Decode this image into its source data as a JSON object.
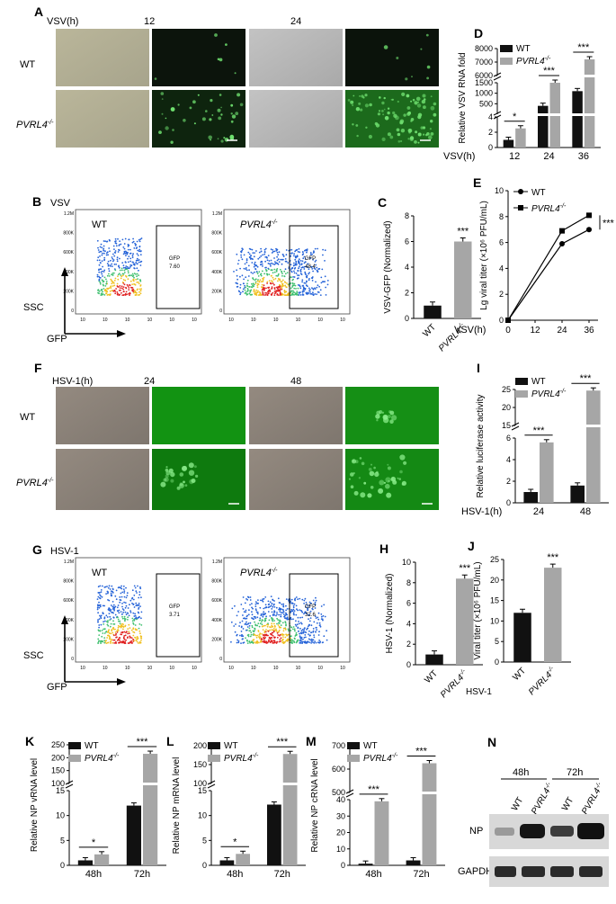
{
  "panels": {
    "A": {
      "letter": "A",
      "axis": "VSV(h)",
      "t1": "12",
      "t2": "24",
      "row1": "WT",
      "row2": "PVRL4"
    },
    "B": {
      "letter": "B",
      "virus": "VSV",
      "wt": "WT",
      "ko": "PVRL4",
      "gate_label": "GFP",
      "gate_wt": "7.60",
      "gate_ko": "48.4",
      "ssc": "SSC",
      "gfp": "GFP"
    },
    "C": {
      "letter": "C"
    },
    "D": {
      "letter": "D"
    },
    "E": {
      "letter": "E"
    },
    "F": {
      "letter": "F",
      "axis": "HSV-1(h)",
      "t1": "24",
      "t2": "48",
      "row1": "WT",
      "row2": "PVRL4"
    },
    "G": {
      "letter": "G",
      "virus": "HSV-1",
      "wt": "WT",
      "ko": "PVRL4",
      "gate_label": "GFP",
      "gate_wt": "3.71",
      "gate_ko": "32.6",
      "ssc": "SSC",
      "gfp": "GFP"
    },
    "H": {
      "letter": "H"
    },
    "I": {
      "letter": "I"
    },
    "J": {
      "letter": "J"
    },
    "K": {
      "letter": "K"
    },
    "L": {
      "letter": "L"
    },
    "M": {
      "letter": "M"
    },
    "N": {
      "letter": "N",
      "t1": "48h",
      "t2": "72h",
      "wt": "WT",
      "ko": "PVRL4",
      "np": "NP",
      "gapdh": "GAPDH"
    }
  },
  "flow_ticks": {
    "y": [
      "1.2M",
      "800K",
      "600K",
      "400K",
      "200K",
      "0"
    ],
    "x": [
      "10",
      "10",
      "10",
      "10",
      "10",
      "10"
    ]
  },
  "chart_data": [
    {
      "id": "D",
      "type": "bar",
      "ylabel": "Relative VSV RNA fold",
      "xaxis_label": "VSV(h)",
      "categories": [
        "12",
        "24",
        "36"
      ],
      "legend": [
        "WT",
        "PVRL4-/-"
      ],
      "series": [
        {
          "name": "WT",
          "values": [
            1,
            400,
            1100
          ]
        },
        {
          "name": "PVRL4-/-",
          "values": [
            2.5,
            1500,
            7200
          ]
        }
      ],
      "yticks": [
        "8000",
        "7000",
        "6000",
        "1500",
        "1000",
        "500",
        "4",
        "2",
        "0"
      ],
      "sig": [
        "*",
        "***",
        "***"
      ]
    },
    {
      "id": "C",
      "type": "bar",
      "ylabel": "VSV-GFP (Normalized)",
      "categories": [
        "WT",
        "PVRL4-/-"
      ],
      "values": [
        1,
        6
      ],
      "ylim": [
        0,
        8
      ],
      "yticks": [
        "0",
        "2",
        "4",
        "6",
        "8"
      ],
      "sig": "***"
    },
    {
      "id": "E",
      "type": "line",
      "ylabel": "Lg viral titer (×10⁶ PFU/mL)",
      "xaxis_label": "VSV(h)",
      "x": [
        0,
        24,
        36
      ],
      "xticks": [
        "0",
        "12",
        "24",
        "36"
      ],
      "legend": [
        "WT",
        "PVRL4-/-"
      ],
      "series": [
        {
          "name": "WT",
          "values": [
            0,
            5.9,
            7
          ]
        },
        {
          "name": "PVRL4-/-",
          "values": [
            0,
            6.9,
            8.1
          ]
        }
      ],
      "ylim": [
        0,
        10
      ],
      "yticks": [
        "0",
        "2",
        "4",
        "6",
        "8",
        "10"
      ],
      "sig": "***"
    },
    {
      "id": "I",
      "type": "bar",
      "ylabel": "Relative luciferase activity",
      "xaxis_label": "HSV-1(h)",
      "categories": [
        "24",
        "48"
      ],
      "legend": [
        "WT",
        "PVRL4-/-"
      ],
      "series": [
        {
          "name": "WT",
          "values": [
            1,
            1.6
          ]
        },
        {
          "name": "PVRL4-/-",
          "values": [
            5.6,
            24.7
          ]
        }
      ],
      "yticks": [
        "25",
        "20",
        "15",
        "6",
        "4",
        "2",
        "0"
      ],
      "sig": [
        "***",
        "***"
      ]
    },
    {
      "id": "H",
      "type": "bar",
      "ylabel": "HSV-1 (Normalized)",
      "categories": [
        "WT",
        "PVRL4-/-"
      ],
      "values": [
        1,
        8.4
      ],
      "ylim": [
        0,
        10
      ],
      "yticks": [
        "0",
        "2",
        "4",
        "6",
        "8",
        "10"
      ],
      "sig": "***"
    },
    {
      "id": "J",
      "type": "bar",
      "ylabel": "Viral titer (×10⁶ PFU/mL)",
      "xaxis_label": "HSV-1",
      "categories": [
        "WT",
        "PVRL4-/-"
      ],
      "values": [
        12,
        23
      ],
      "ylim": [
        0,
        25
      ],
      "yticks": [
        "0",
        "5",
        "10",
        "15",
        "20",
        "25"
      ],
      "sig": "***"
    },
    {
      "id": "K",
      "type": "bar",
      "ylabel": "Relative NP vRNA level",
      "categories": [
        "48h",
        "72h"
      ],
      "legend": [
        "WT",
        "PVRL4-/-"
      ],
      "series": [
        {
          "name": "WT",
          "values": [
            1,
            12
          ]
        },
        {
          "name": "PVRL4-/-",
          "values": [
            2.2,
            215
          ]
        }
      ],
      "yticks": [
        "250",
        "200",
        "150",
        "100",
        "15",
        "10",
        "5",
        "0"
      ],
      "sig": [
        "*",
        "***"
      ]
    },
    {
      "id": "L",
      "type": "bar",
      "ylabel": "Relative NP mRNA level",
      "categories": [
        "48h",
        "72h"
      ],
      "legend": [
        "WT",
        "PVRL4-/-"
      ],
      "series": [
        {
          "name": "WT",
          "values": [
            1,
            12.2
          ]
        },
        {
          "name": "PVRL4-/-",
          "values": [
            2.3,
            178
          ]
        }
      ],
      "yticks": [
        "200",
        "150",
        "100",
        "15",
        "10",
        "5",
        "0"
      ],
      "sig": [
        "*",
        "***"
      ]
    },
    {
      "id": "M",
      "type": "bar",
      "ylabel": "Relative NP cRNA level",
      "categories": [
        "48h",
        "72h"
      ],
      "legend": [
        "WT",
        "PVRL4-/-"
      ],
      "series": [
        {
          "name": "WT",
          "values": [
            1,
            3
          ]
        },
        {
          "name": "PVRL4-/-",
          "values": [
            39,
            625
          ]
        }
      ],
      "yticks": [
        "700",
        "600",
        "500",
        "40",
        "30",
        "20",
        "10",
        "0"
      ],
      "sig": [
        "***",
        "***"
      ]
    }
  ],
  "colors": {
    "wt": "#111111",
    "ko": "#a6a6a6",
    "green": "#1f9a20"
  }
}
